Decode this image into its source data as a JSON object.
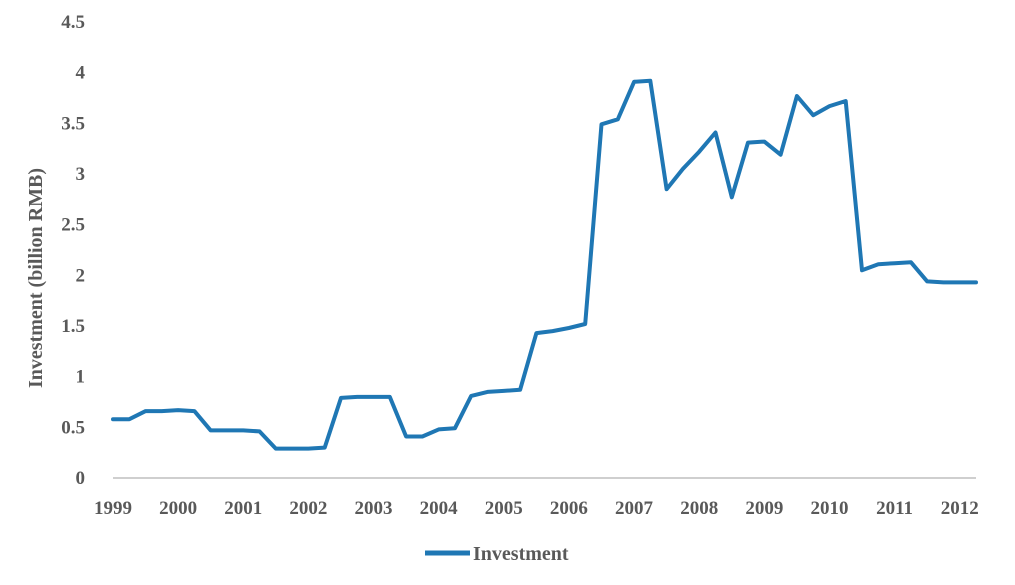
{
  "chart_data": {
    "type": "line",
    "ylabel": "Investment (billion RMB)",
    "ylim": [
      0,
      4.5
    ],
    "yticks": [
      "0",
      "0.5",
      "1",
      "1.5",
      "2",
      "2.5",
      "3",
      "3.5",
      "4",
      "4.5"
    ],
    "xticks": [
      "1999",
      "2000",
      "2001",
      "2002",
      "2003",
      "2004",
      "2005",
      "2006",
      "2007",
      "2008",
      "2009",
      "2010",
      "2011",
      "2012"
    ],
    "grid": false,
    "legend_position": "bottom",
    "series": [
      {
        "name": "Investment",
        "color": "#1f77b4",
        "x": [
          1999.0,
          1999.25,
          1999.5,
          1999.75,
          2000.0,
          2000.25,
          2000.5,
          2000.75,
          2001.0,
          2001.25,
          2001.5,
          2001.75,
          2002.0,
          2002.25,
          2002.5,
          2002.75,
          2003.0,
          2003.25,
          2003.5,
          2003.75,
          2004.0,
          2004.25,
          2004.5,
          2004.75,
          2005.0,
          2005.25,
          2005.5,
          2005.75,
          2006.0,
          2006.25,
          2006.5,
          2006.75,
          2007.0,
          2007.25,
          2007.5,
          2007.75,
          2008.0,
          2008.25,
          2008.5,
          2008.75,
          2009.0,
          2009.25,
          2009.5,
          2009.75,
          2010.0,
          2010.25,
          2010.5,
          2010.75,
          2011.0,
          2011.25,
          2011.5,
          2011.75,
          2012.0,
          2012.25
        ],
        "values": [
          0.58,
          0.58,
          0.66,
          0.66,
          0.67,
          0.66,
          0.47,
          0.47,
          0.47,
          0.46,
          0.29,
          0.29,
          0.29,
          0.3,
          0.79,
          0.8,
          0.8,
          0.8,
          0.41,
          0.41,
          0.48,
          0.49,
          0.81,
          0.85,
          0.86,
          0.87,
          1.43,
          1.45,
          1.48,
          1.52,
          3.49,
          3.54,
          3.91,
          3.92,
          2.85,
          3.05,
          3.22,
          3.41,
          2.77,
          3.31,
          3.32,
          3.19,
          3.77,
          3.58,
          3.67,
          3.72,
          2.05,
          2.11,
          2.12,
          2.13,
          1.94,
          1.93,
          1.93,
          1.93
        ]
      }
    ]
  }
}
